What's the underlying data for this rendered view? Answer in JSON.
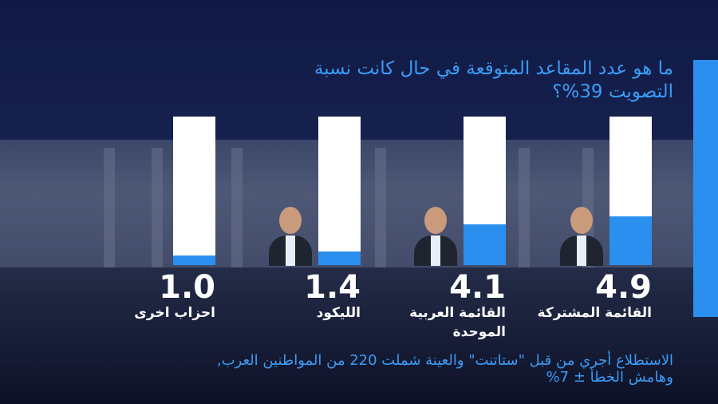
{
  "title": "ما هو عدد المقاعد المتوقعة في حال كانت نسبة التصويت 39%؟",
  "footnote": "الاستطلاع أجري من قبل \"ستاتنت\" والعينة شملت 220 من المواطنين العرب, وهامش الخطأ ± 7%",
  "colors": {
    "accent": "#2b8ff0",
    "title": "#3a9cf5",
    "track": "#ffffff"
  },
  "chart_data": {
    "type": "bar",
    "categories": [
      "القائمة المشتركة",
      "القائمة العربية الموحدة",
      "الليكود",
      "احزاب اخرى"
    ],
    "values": [
      4.9,
      4.1,
      1.4,
      1.0
    ],
    "value_labels": [
      "4.9",
      "4.1",
      "1.4",
      "1.0"
    ],
    "ylim": [
      0,
      15
    ],
    "grid": false,
    "legend": "none",
    "title": "ما هو عدد المقاعد المتوقعة في حال كانت نسبة التصويت 39%؟"
  }
}
